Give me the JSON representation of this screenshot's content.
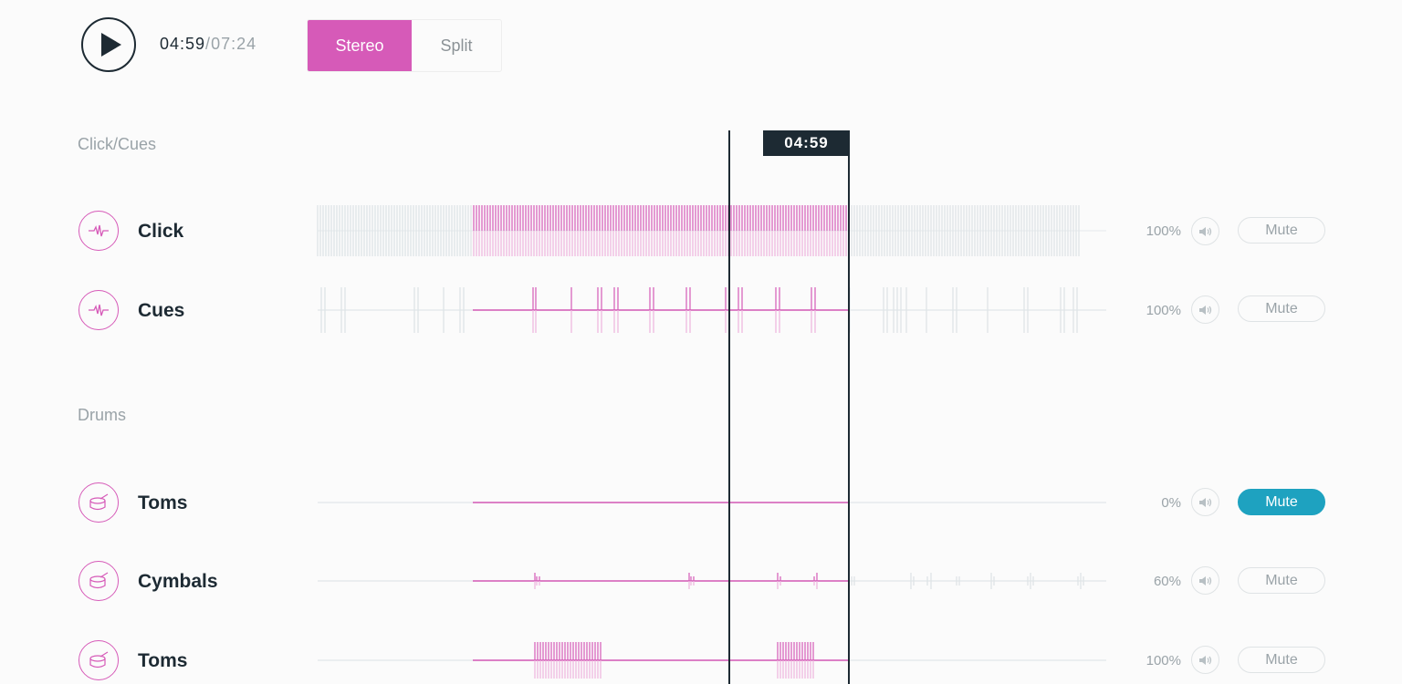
{
  "transport": {
    "current_time": "04:59",
    "separator": "/",
    "total_time": "07:24"
  },
  "mode": {
    "options": [
      "Stereo",
      "Split"
    ],
    "selected": "Stereo"
  },
  "playhead": {
    "label": "04:59"
  },
  "groups": [
    {
      "title": "Click/Cues",
      "tracks": [
        {
          "name": "Click",
          "icon": "waveform-icon",
          "volume": "100%",
          "mute_label": "Mute",
          "muted": false
        },
        {
          "name": "Cues",
          "icon": "waveform-icon",
          "volume": "100%",
          "mute_label": "Mute",
          "muted": false
        }
      ]
    },
    {
      "title": "Drums",
      "tracks": [
        {
          "name": "Toms",
          "icon": "drum-icon",
          "volume": "0%",
          "mute_label": "Mute",
          "muted": true
        },
        {
          "name": "Cymbals",
          "icon": "drum-icon",
          "volume": "60%",
          "mute_label": "Mute",
          "muted": false
        },
        {
          "name": "Toms",
          "icon": "drum-icon",
          "volume": "100%",
          "mute_label": "Mute",
          "muted": false
        }
      ]
    }
  ],
  "colors": {
    "accent": "#d65ab8",
    "accent_light": "#eeb3dd",
    "mute_active": "#1ea2c0",
    "dark": "#1d2a33",
    "wave_inactive": "#dde3e6"
  }
}
